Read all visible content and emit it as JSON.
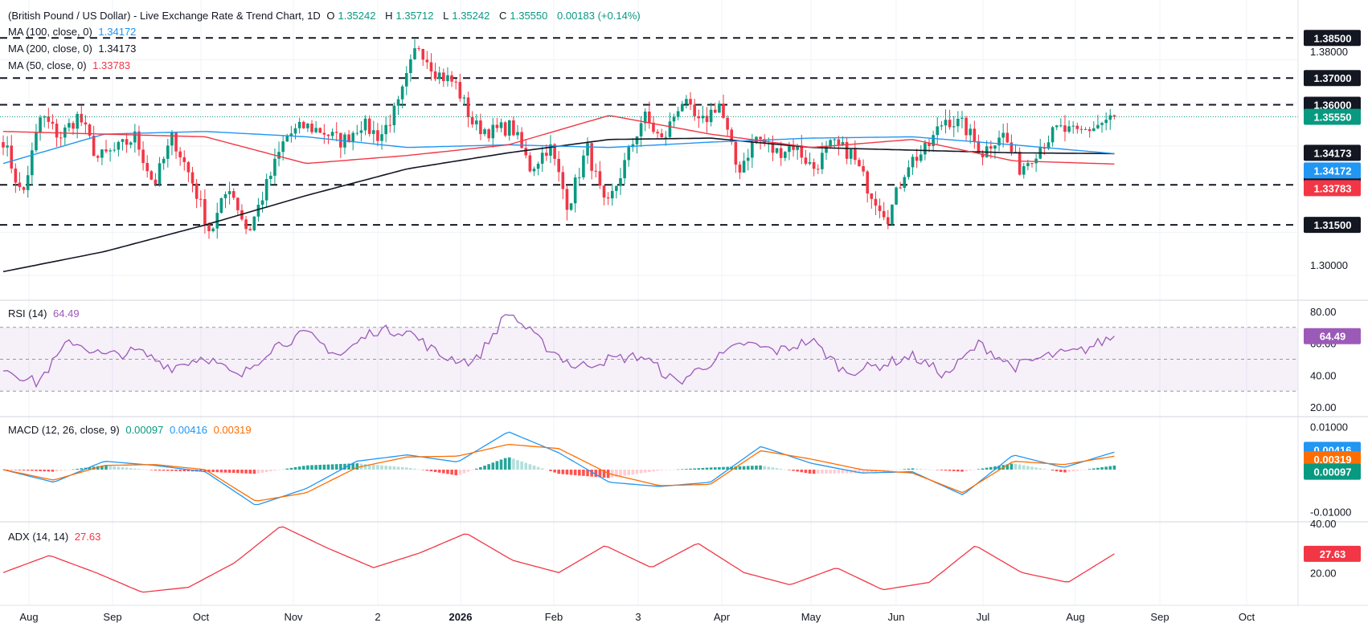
{
  "header": {
    "symbol": "(British Pound / US Dollar) - Live Exchange Rate & Trend Chart, 1D",
    "open_label": "O",
    "open": "1.35242",
    "high_label": "H",
    "high": "1.35712",
    "low_label": "L",
    "low": "1.35242",
    "close_label": "C",
    "close": "1.35550",
    "change": "0.00183 (+0.14%)"
  },
  "legend": {
    "ma100": {
      "label": "MA (100, close, 0)",
      "value": "1.34172",
      "color": "#2196f3"
    },
    "ma200": {
      "label": "MA (200, close, 0)",
      "value": "1.34173",
      "color": "#131722"
    },
    "ma50": {
      "label": "MA (50, close, 0)",
      "value": "1.33783",
      "color": "#f23645"
    }
  },
  "indicators": {
    "rsi": {
      "label": "RSI (14)",
      "value": "64.49",
      "color": "#9c5ab8"
    },
    "macd": {
      "label": "MACD (12, 26, close, 9)",
      "hist": "0.00097",
      "macd": "0.00416",
      "signal": "0.00319"
    },
    "adx": {
      "label": "ADX (14, 14)",
      "value": "27.63",
      "color": "#f23645"
    }
  },
  "colors": {
    "up": "#089981",
    "down": "#f23645",
    "ma100": "#2196f3",
    "ma200": "#131722",
    "ma50": "#f23645",
    "macd": "#2196f3",
    "signal": "#ff6d00",
    "rsi": "#9c5ab8",
    "adx": "#f23645"
  },
  "chart_data": {
    "type": "candlestick",
    "x_ticks": [
      "Aug",
      "Sep",
      "Oct",
      "Nov",
      "2",
      "2026",
      "Feb",
      "3",
      "Apr",
      "May",
      "Jun",
      "Jul",
      "Aug",
      "Sep",
      "Oct"
    ],
    "price_axis": {
      "range": [
        1.288,
        1.389
      ],
      "tick_labels": [
        "1.38000",
        "1.30000"
      ]
    },
    "levels": [
      {
        "value": 1.385,
        "label": "1.38500"
      },
      {
        "value": 1.37,
        "label": "1.37000"
      },
      {
        "value": 1.36,
        "label": "1.36000"
      },
      {
        "value": 1.33,
        "label": "1.33000"
      },
      {
        "value": 1.315,
        "label": "1.31500"
      }
    ],
    "price_tags": [
      {
        "label": "1.35550",
        "value": 1.3555,
        "color": "#089981"
      },
      {
        "label": "1.34173",
        "value": 1.34173,
        "color": "#131722"
      },
      {
        "label": "1.34172",
        "value": 1.34172,
        "color": "#2196f3"
      },
      {
        "label": "1.33783",
        "value": 1.33783,
        "color": "#f23645"
      }
    ],
    "anchors": [
      1.347,
      1.325,
      1.356,
      1.348,
      1.356,
      1.34,
      1.343,
      1.348,
      1.33,
      1.348,
      1.332,
      1.312,
      1.33,
      1.312,
      1.33,
      1.348,
      1.352,
      1.35,
      1.346,
      1.353,
      1.348,
      1.36,
      1.383,
      1.372,
      1.368,
      1.352,
      1.35,
      1.352,
      1.336,
      1.345,
      1.322,
      1.344,
      1.32,
      1.338,
      1.356,
      1.346,
      1.362,
      1.352,
      1.361,
      1.335,
      1.348,
      1.342,
      1.345,
      1.336,
      1.345,
      1.342,
      1.328,
      1.318,
      1.338,
      1.343,
      1.355,
      1.352,
      1.342,
      1.35,
      1.336,
      1.344,
      1.351,
      1.349,
      1.352,
      1.3555
    ],
    "ma200": [
      1.2975,
      1.305,
      1.315,
      1.326,
      1.336,
      1.342,
      1.347,
      1.3475,
      1.344,
      1.343,
      1.342,
      1.3417
    ],
    "ma100": [
      1.338,
      1.349,
      1.35,
      1.348,
      1.344,
      1.345,
      1.344,
      1.346,
      1.3475,
      1.348,
      1.345,
      1.3417
    ],
    "ma50": [
      1.35,
      1.349,
      1.348,
      1.338,
      1.341,
      1.345,
      1.356,
      1.349,
      1.344,
      1.347,
      1.339,
      1.3378
    ],
    "rsi": {
      "levels": [
        70,
        50,
        30
      ],
      "axis_labels": [
        "80.00",
        "60.00",
        "40.00",
        "20.00"
      ],
      "range": [
        15,
        85
      ],
      "current": 64.49,
      "current_label": "64.49"
    },
    "macd": {
      "axis_labels": [
        "0.01000",
        "-0.01000"
      ],
      "range": [
        -0.012,
        0.012
      ],
      "macd_current": 0.00416,
      "signal_current": 0.00319,
      "hist_current": 0.00097,
      "tags": [
        "0.00416",
        "0.00319",
        "0.00097"
      ]
    },
    "adx": {
      "axis_labels": [
        "40.00",
        "20.00"
      ],
      "range": [
        8,
        40
      ],
      "current": 27.63,
      "current_label": "27.63"
    }
  }
}
